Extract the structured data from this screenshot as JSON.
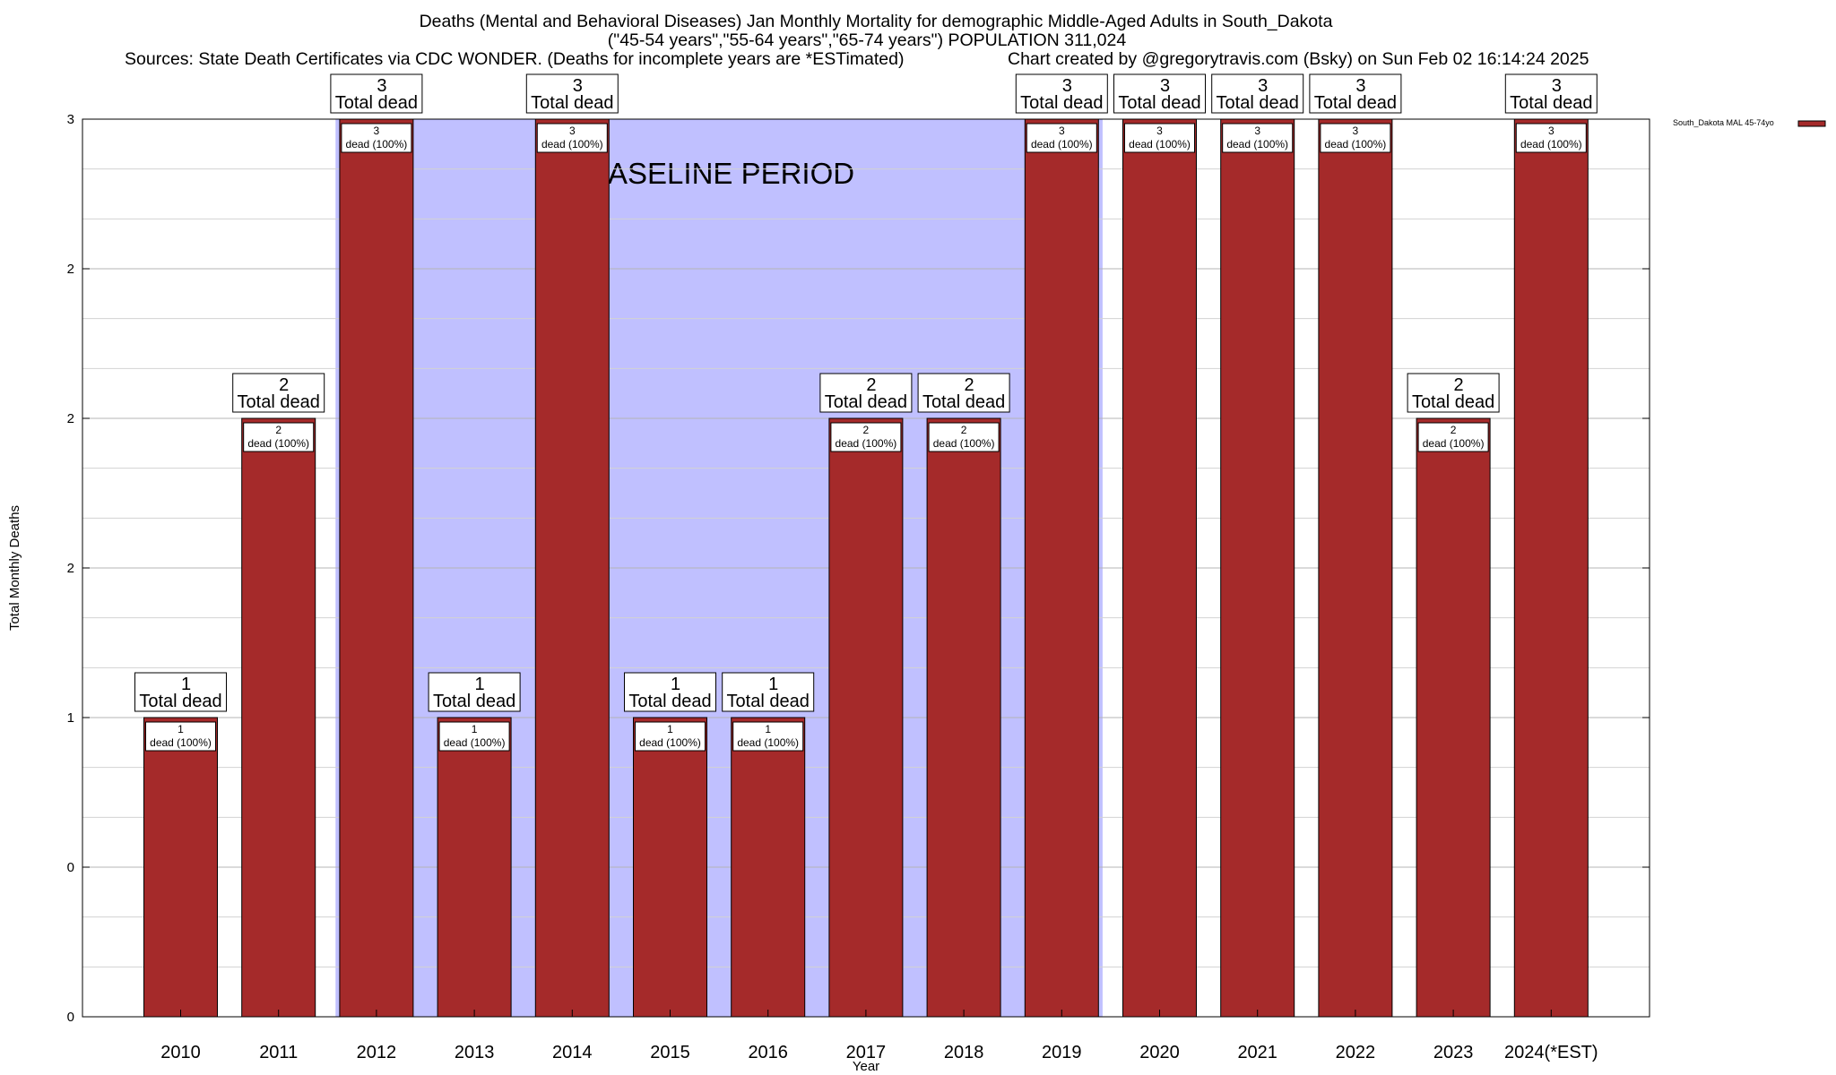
{
  "chart_data": {
    "type": "bar",
    "title_lines": [
      "Deaths (Mental and Behavioral Diseases) Jan Monthly Mortality for demographic Middle-Aged Adults in South_Dakota",
      "(\"45-54 years\",\"55-64 years\",\"65-74 years\") POPULATION 311,024"
    ],
    "sources_text": "Sources: State Death Certificates via CDC WONDER. (Deaths for incomplete years are *ESTimated)",
    "credit_text": "Chart created by @gregorytravis.com (Bsky) on Sun Feb 02 16:14:24 2025",
    "xlabel": "Year",
    "ylabel": "Total Monthly Deaths",
    "ylim": [
      0,
      3
    ],
    "ytick_labels": [
      "0",
      "0",
      "1",
      "2",
      "2",
      "2",
      "3"
    ],
    "categories": [
      "2010",
      "2011",
      "2012",
      "2013",
      "2014",
      "2015",
      "2016",
      "2017",
      "2018",
      "2019",
      "2020",
      "2021",
      "2022",
      "2023",
      "2024(*EST)"
    ],
    "series": [
      {
        "name": "South_Dakota MAL 45-74yo",
        "color": "#a52a2a",
        "values": [
          1,
          2,
          3,
          1,
          3,
          1,
          1,
          2,
          2,
          3,
          3,
          3,
          3,
          2,
          3
        ],
        "inbar_labels": [
          "dead (100%)",
          "dead (100%)",
          "dead (100%)",
          "dead (100%)",
          "dead (100%)",
          "dead (100%)",
          "dead (100%)",
          "dead (100%)",
          "dead (100%)",
          "dead (100%)",
          "dead (100%)",
          "dead (100%)",
          "dead (100%)",
          "dead (100%)",
          "dead (100%)"
        ]
      }
    ],
    "total_label": "Total dead",
    "baseline": {
      "label": "BASELINE PERIOD",
      "from_category": "2012",
      "to_category": "2019",
      "color": "#c0c0ff"
    },
    "grid": true,
    "legend_position": "top-right"
  }
}
